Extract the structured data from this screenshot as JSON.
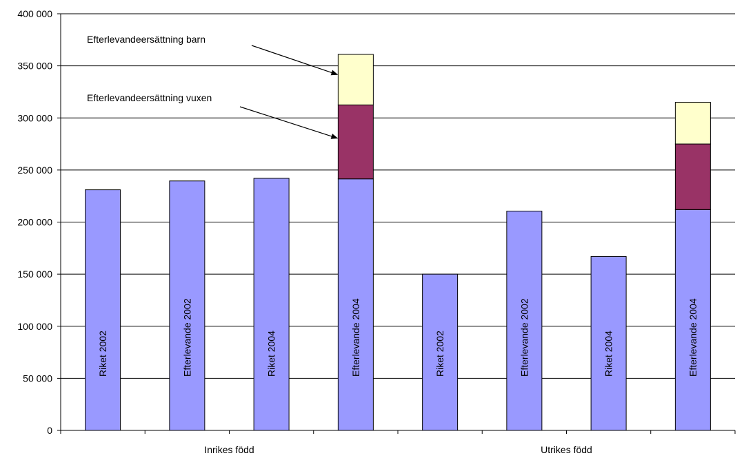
{
  "chart_data": {
    "type": "bar",
    "stacked": true,
    "ylim": [
      0,
      400000
    ],
    "yticks": [
      0,
      50000,
      100000,
      150000,
      200000,
      250000,
      300000,
      350000,
      400000
    ],
    "ytick_labels": [
      "0",
      "50 000",
      "100 000",
      "150 000",
      "200 000",
      "250 000",
      "300 000",
      "350 000",
      "400 000"
    ],
    "grid": true,
    "groups": [
      "Inrikes född",
      "Utrikes född"
    ],
    "categories": [
      "Riket 2002",
      "Efterlevande 2002",
      "Riket 2004",
      "Efterlevande 2004",
      "Riket 2002",
      "Efterlevande 2002",
      "Riket 2004",
      "Efterlevande 2004"
    ],
    "category_group": [
      0,
      0,
      0,
      0,
      1,
      1,
      1,
      1
    ],
    "series": [
      {
        "values": [
          231000,
          239500,
          242000,
          241500,
          150000,
          210500,
          167000,
          212000
        ]
      },
      {
        "values": [
          0,
          0,
          0,
          71000,
          0,
          0,
          0,
          63000
        ]
      },
      {
        "values": [
          0,
          0,
          0,
          48500,
          0,
          0,
          0,
          40000
        ]
      }
    ],
    "annotations": [
      {
        "text": "Efterlevandeersättning barn",
        "points_to_series": 2,
        "bar_index": 3
      },
      {
        "text": "Efterlevandeersättning vuxen",
        "points_to_series": 1,
        "bar_index": 3
      }
    ],
    "colors": {
      "series": [
        "#9999ff",
        "#993366",
        "#ffffcc"
      ],
      "edge": "#000000",
      "grid": "#000000"
    }
  }
}
